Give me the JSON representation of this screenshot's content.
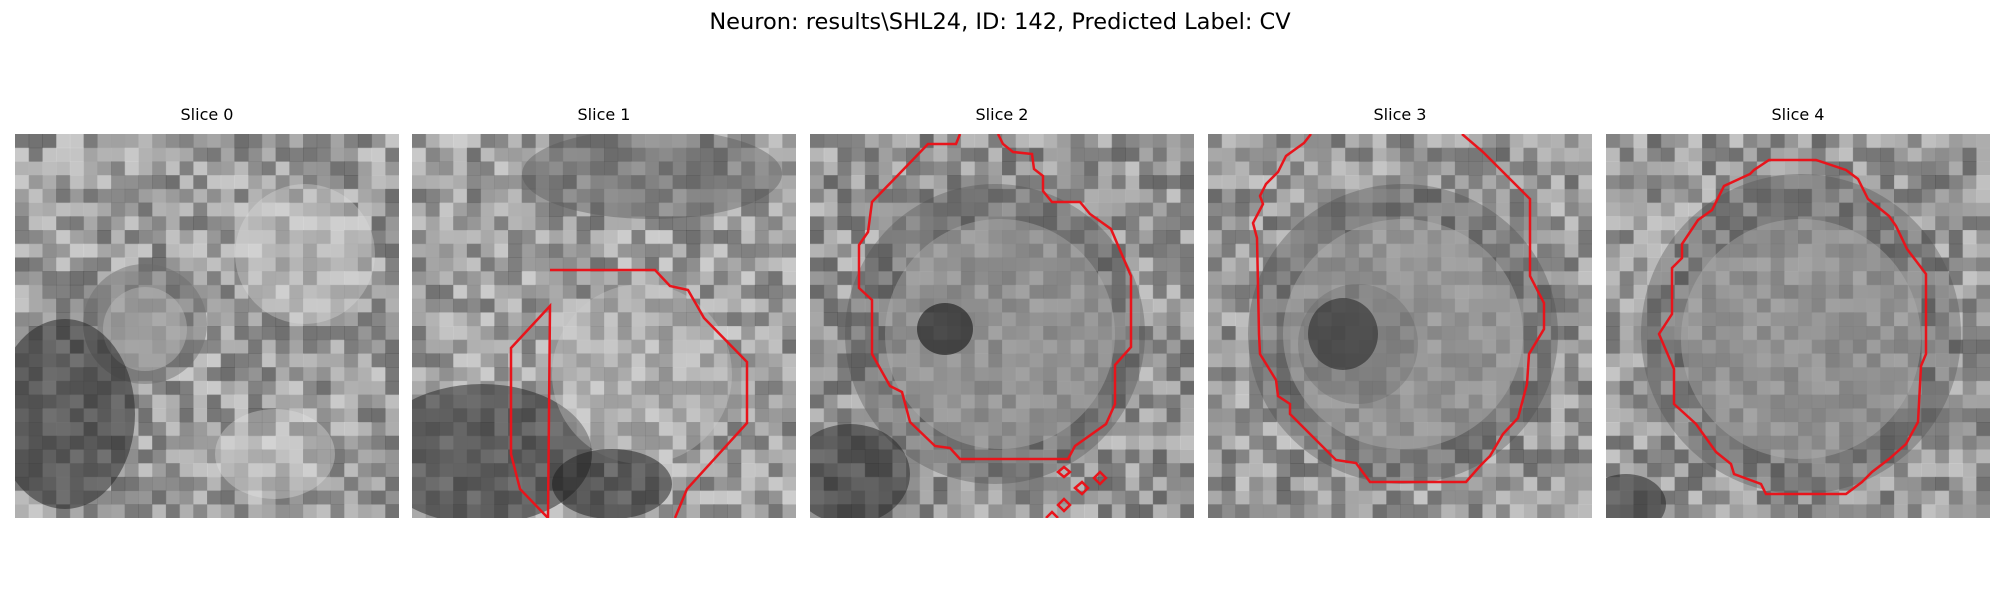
{
  "figure": {
    "title": "Neuron: results\\SHL24, ID: 142, Predicted Label: CV"
  },
  "slices": [
    {
      "label": "Slice 0",
      "has_contour": false,
      "contour_color": "#e8141b"
    },
    {
      "label": "Slice 1",
      "has_contour": true,
      "contour_color": "#e8141b"
    },
    {
      "label": "Slice 2",
      "has_contour": true,
      "contour_color": "#e8141b"
    },
    {
      "label": "Slice 3",
      "has_contour": true,
      "contour_color": "#e8141b"
    },
    {
      "label": "Slice 4",
      "has_contour": true,
      "contour_color": "#e8141b"
    }
  ]
}
